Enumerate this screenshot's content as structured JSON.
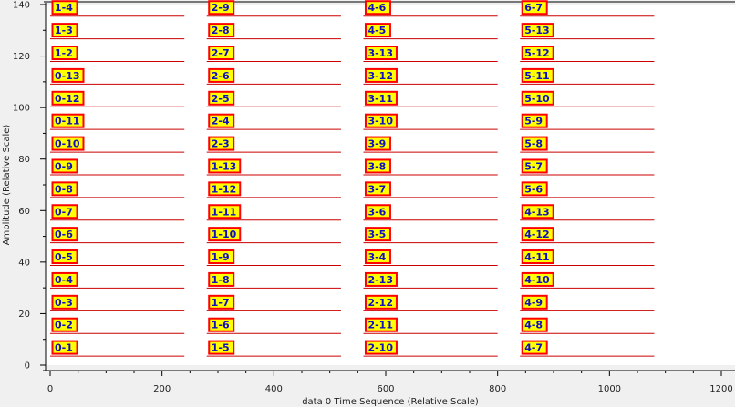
{
  "chart_data": {
    "type": "line",
    "title": "",
    "xlabel": "data 0 Time Sequence (Relative Scale)",
    "ylabel": "Amplitude (Relative Scale)",
    "xlim": [
      0,
      1200
    ],
    "ylim": [
      0,
      140
    ],
    "x_major_ticks": [
      0,
      200,
      400,
      600,
      800,
      1000,
      1200
    ],
    "y_major_ticks": [
      0,
      20,
      40,
      60,
      80,
      100,
      120,
      140
    ],
    "grid": false,
    "legend": "none",
    "colors": {
      "trace": "#cc0000",
      "label_fill": "#ffff00",
      "label_border": "#ff0000",
      "label_text": "#1010c0",
      "plot_background": "#ffffff",
      "frame": "#000000"
    },
    "columns": [
      {
        "x_start": 0,
        "x_end": 240,
        "labels": [
          "1-4",
          "1-3",
          "1-2",
          "0-13",
          "0-12",
          "0-11",
          "0-10",
          "0-9",
          "0-8",
          "0-7",
          "0-6",
          "0-5",
          "0-4",
          "0-3",
          "0-2",
          "0-1"
        ]
      },
      {
        "x_start": 280,
        "x_end": 520,
        "labels": [
          "2-9",
          "2-8",
          "2-7",
          "2-6",
          "2-5",
          "2-4",
          "2-3",
          "1-13",
          "1-12",
          "1-11",
          "1-10",
          "1-9",
          "1-8",
          "1-7",
          "1-6",
          "1-5"
        ]
      },
      {
        "x_start": 560,
        "x_end": 800,
        "labels": [
          "4-6",
          "4-5",
          "3-13",
          "3-12",
          "3-11",
          "3-10",
          "3-9",
          "3-8",
          "3-7",
          "3-6",
          "3-5",
          "3-4",
          "2-13",
          "2-12",
          "2-11",
          "2-10"
        ]
      },
      {
        "x_start": 840,
        "x_end": 1080,
        "labels": [
          "6-7",
          "5-13",
          "5-12",
          "5-11",
          "5-10",
          "5-9",
          "5-8",
          "5-7",
          "5-6",
          "4-13",
          "4-12",
          "4-11",
          "4-10",
          "4-9",
          "4-8",
          "4-7"
        ]
      }
    ],
    "row_baselines": [
      135.5,
      126.7,
      117.9,
      109.1,
      100.3,
      91.5,
      82.7,
      73.9,
      65.1,
      56.3,
      47.5,
      38.7,
      29.9,
      21.1,
      12.3,
      3.5
    ]
  }
}
